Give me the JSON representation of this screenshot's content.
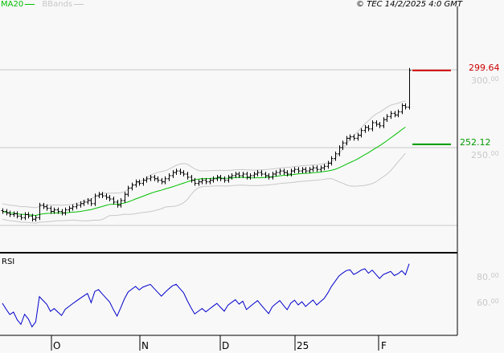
{
  "header": {
    "legend": [
      {
        "label": "MA20",
        "color": "#00c000"
      },
      {
        "label": "BBands",
        "color": "#c8c8c8"
      }
    ],
    "copyright": "© TEC 14/2/2025 4:0 GMT"
  },
  "chart_data": {
    "type": "ohlc",
    "x_labels": [
      "O",
      "N",
      "D",
      "25",
      "F"
    ],
    "y_ticks": [
      {
        "int": "300",
        "dec": "00"
      },
      {
        "int": "250",
        "dec": "00"
      }
    ],
    "ylim": [
      200,
      300
    ],
    "closes": [
      209,
      208,
      207,
      207.5,
      206,
      205,
      207,
      206,
      204,
      205,
      213,
      212,
      211,
      209,
      210,
      209,
      208,
      210,
      211,
      212,
      213,
      214,
      215,
      216,
      214,
      219,
      220,
      219,
      218,
      217,
      215,
      213,
      216,
      220,
      224,
      226,
      228,
      227,
      229,
      230,
      231,
      230,
      229,
      228,
      230,
      232,
      234,
      235,
      234,
      233,
      231,
      229,
      227,
      228,
      229,
      228,
      229,
      230,
      231,
      230,
      229,
      231,
      232,
      233,
      232,
      233,
      231,
      232,
      233,
      234,
      233,
      232,
      231,
      233,
      234,
      235,
      234,
      233,
      235,
      236,
      235,
      236,
      235,
      236,
      237,
      236,
      237,
      238,
      240,
      243,
      246,
      250,
      253,
      256,
      257,
      256,
      258,
      261,
      263,
      262,
      266,
      265,
      264,
      268,
      270,
      272,
      271,
      273,
      277,
      276,
      299.64
    ],
    "indicators": {
      "ma": "MA20",
      "bands": "BBands"
    },
    "markers": [
      {
        "label": "299.64",
        "value": 299.64,
        "color": "#cc0000"
      },
      {
        "label": "252.12",
        "value": 252.12,
        "color": "#009900"
      }
    ],
    "rsi": {
      "title": "RSI",
      "y_ticks": [
        {
          "int": "80",
          "dec": "00"
        },
        {
          "int": "60",
          "dec": "00"
        }
      ],
      "color": "#0000cc"
    }
  }
}
